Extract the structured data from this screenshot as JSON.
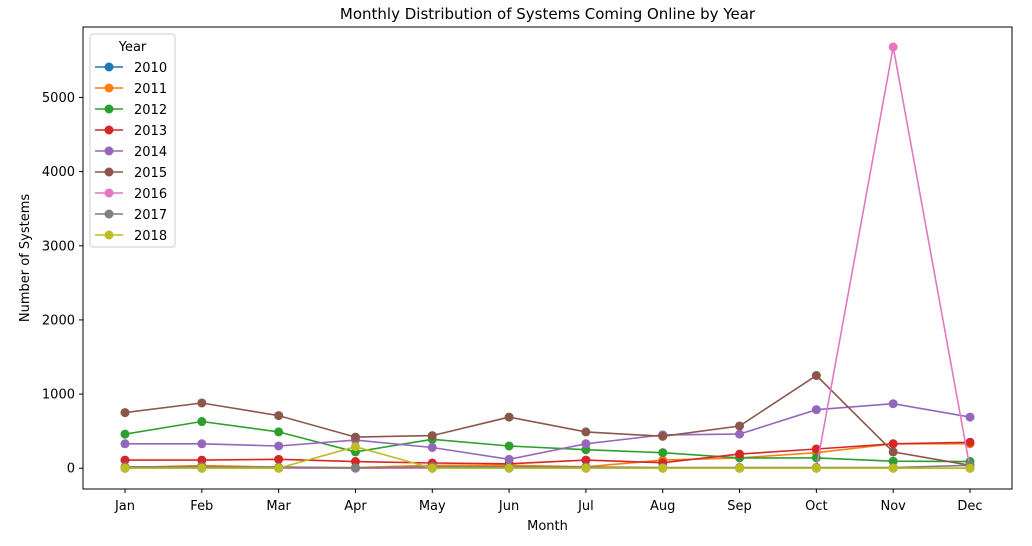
{
  "chart_data": {
    "type": "line",
    "title": "Monthly Distribution of Systems Coming Online by Year",
    "xlabel": "Month",
    "ylabel": "Number of Systems",
    "categories": [
      "Jan",
      "Feb",
      "Mar",
      "Apr",
      "May",
      "Jun",
      "Jul",
      "Aug",
      "Sep",
      "Oct",
      "Nov",
      "Dec"
    ],
    "ylim": [
      -280,
      5950
    ],
    "yticks": [
      0,
      1000,
      2000,
      3000,
      4000,
      5000
    ],
    "grid": false,
    "legend": {
      "title": "Year",
      "placement": "top-left"
    },
    "series": [
      {
        "name": "2010",
        "color": "#1f77b4",
        "values": [
          0,
          0,
          0,
          0,
          0,
          0,
          0,
          0,
          0,
          0,
          0,
          0
        ]
      },
      {
        "name": "2011",
        "color": "#ff7f0e",
        "values": [
          10,
          35,
          15,
          10,
          40,
          40,
          20,
          110,
          140,
          210,
          330,
          330
        ]
      },
      {
        "name": "2012",
        "color": "#2ca02c",
        "values": [
          460,
          630,
          490,
          220,
          390,
          300,
          250,
          210,
          140,
          140,
          95,
          90
        ]
      },
      {
        "name": "2013",
        "color": "#d62728",
        "values": [
          110,
          110,
          120,
          90,
          70,
          60,
          110,
          75,
          190,
          260,
          330,
          350
        ]
      },
      {
        "name": "2014",
        "color": "#9467bd",
        "values": [
          330,
          330,
          300,
          380,
          280,
          120,
          330,
          450,
          460,
          790,
          870,
          690
        ]
      },
      {
        "name": "2015",
        "color": "#8c564b",
        "values": [
          750,
          880,
          710,
          420,
          440,
          690,
          490,
          430,
          570,
          1250,
          220,
          40
        ]
      },
      {
        "name": "2016",
        "color": "#e377c2",
        "values": [
          0,
          0,
          0,
          0,
          0,
          0,
          0,
          0,
          0,
          0,
          5680,
          0
        ]
      },
      {
        "name": "2017",
        "color": "#7f7f7f",
        "values": [
          20,
          20,
          15,
          5,
          20,
          20,
          15,
          10,
          10,
          10,
          10,
          40
        ]
      },
      {
        "name": "2018",
        "color": "#bcbd22",
        "values": [
          0,
          0,
          0,
          290,
          0,
          0,
          0,
          0,
          0,
          0,
          0,
          0
        ]
      }
    ]
  }
}
